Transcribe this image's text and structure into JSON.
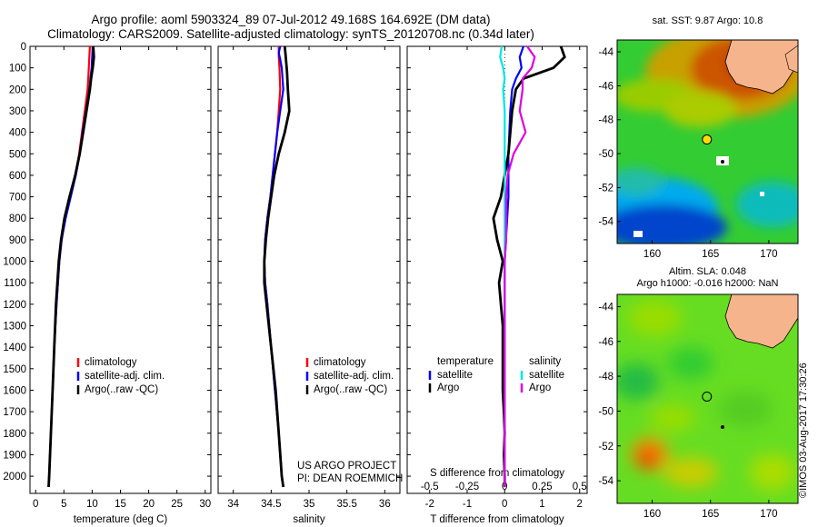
{
  "header": {
    "title_line1": "Argo profile: aoml 5903324_89 07-Jul-2012 49.168S 164.692E (DM data)",
    "title_line2": "Climatology: CARS2009. Satellite-adjusted climatology: synTS_20120708.nc (0.34d later)"
  },
  "colors": {
    "climatology": "#ff0000",
    "satellite": "#0000ff",
    "argo": "#000000",
    "sat_salinity": "#00e5e5",
    "argo_salinity": "#e000e0"
  },
  "chart_data": [
    {
      "type": "line",
      "name": "temperature-profile",
      "xlabel": "temperature (deg C)",
      "ylabel": "",
      "xlim": [
        -1,
        31
      ],
      "ylim": [
        2080,
        0
      ],
      "xticks": [
        0,
        5,
        10,
        15,
        20,
        25,
        30
      ],
      "yticks": [
        0,
        100,
        200,
        300,
        400,
        500,
        600,
        700,
        800,
        900,
        1000,
        1100,
        1200,
        1300,
        1400,
        1500,
        1600,
        1700,
        1800,
        1900,
        2000
      ],
      "legend": [
        "climatology",
        "satellite-adj. clim.",
        "Argo(..raw -QC)"
      ],
      "legend_position": "lower-right",
      "series": [
        {
          "name": "climatology",
          "depth": [
            0,
            50,
            100,
            150,
            200,
            300,
            400,
            500,
            600,
            700,
            800,
            900,
            1000,
            1200,
            1400,
            1600,
            1800,
            2000,
            2050
          ],
          "values": [
            9.6,
            9.5,
            9.4,
            9.3,
            9.2,
            8.7,
            8.2,
            7.7,
            7.0,
            6.1,
            5.2,
            4.6,
            4.2,
            3.7,
            3.3,
            3.0,
            2.7,
            2.4,
            2.3
          ]
        },
        {
          "name": "satellite-adj. clim.",
          "depth": [
            0,
            50,
            100,
            150,
            200,
            300,
            400,
            500,
            600,
            700,
            800,
            900,
            1000,
            1200,
            1400,
            1600,
            1800,
            2000,
            2050
          ],
          "values": [
            10.1,
            10.0,
            9.9,
            9.7,
            9.5,
            8.9,
            8.3,
            7.8,
            7.1,
            6.2,
            5.3,
            4.6,
            4.2,
            3.7,
            3.3,
            3.0,
            2.7,
            2.4,
            2.3
          ]
        },
        {
          "name": "Argo(..raw -QC)",
          "depth": [
            0,
            50,
            100,
            150,
            200,
            300,
            400,
            500,
            600,
            700,
            800,
            900,
            1000,
            1200,
            1400,
            1600,
            1800,
            2000,
            2050
          ],
          "values": [
            10.2,
            10.3,
            10.1,
            9.8,
            9.6,
            9.0,
            8.4,
            7.8,
            7.0,
            6.0,
            5.1,
            4.5,
            4.1,
            3.6,
            3.3,
            3.0,
            2.7,
            2.4,
            2.3
          ]
        }
      ]
    },
    {
      "type": "line",
      "name": "salinity-profile",
      "xlabel": "salinity",
      "ylabel": "",
      "xlim": [
        33.8,
        36.2
      ],
      "ylim": [
        2080,
        0
      ],
      "xticks": [
        34,
        34.5,
        35,
        35.5,
        36
      ],
      "legend": [
        "climatology",
        "satellite-adj. clim.",
        "Argo(..raw -QC)"
      ],
      "legend_position": "lower-right",
      "annotations": [
        "US ARGO PROJECT",
        "PI: DEAN ROEMMICH"
      ],
      "series": [
        {
          "name": "climatology",
          "depth": [
            0,
            50,
            100,
            200,
            300,
            400,
            500,
            600,
            700,
            800,
            900,
            1000,
            1100,
            1200,
            1400,
            1600,
            1800,
            2000,
            2050
          ],
          "values": [
            34.6,
            34.6,
            34.61,
            34.62,
            34.6,
            34.58,
            34.55,
            34.52,
            34.49,
            34.45,
            34.42,
            34.41,
            34.42,
            34.45,
            34.5,
            34.55,
            34.6,
            34.64,
            34.66
          ]
        },
        {
          "name": "satellite-adj. clim.",
          "depth": [
            0,
            30,
            60,
            100,
            200,
            300,
            400,
            500,
            600,
            700,
            800,
            900,
            1000,
            1100,
            1200,
            1400,
            1600,
            1800,
            2000,
            2050
          ],
          "values": [
            34.62,
            34.6,
            34.62,
            34.64,
            34.66,
            34.62,
            34.58,
            34.55,
            34.52,
            34.49,
            34.45,
            34.42,
            34.41,
            34.42,
            34.45,
            34.5,
            34.55,
            34.6,
            34.64,
            34.66
          ]
        },
        {
          "name": "Argo(..raw -QC)",
          "depth": [
            0,
            40,
            80,
            120,
            200,
            300,
            400,
            500,
            600,
            700,
            800,
            900,
            1000,
            1100,
            1200,
            1400,
            1600,
            1800,
            2000,
            2050
          ],
          "values": [
            34.68,
            34.69,
            34.7,
            34.71,
            34.72,
            34.74,
            34.68,
            34.6,
            34.54,
            34.5,
            34.46,
            34.43,
            34.41,
            34.41,
            34.44,
            34.5,
            34.56,
            34.6,
            34.64,
            34.66
          ]
        }
      ]
    },
    {
      "type": "line",
      "name": "difference-profile",
      "xlabel": "T difference from climatology",
      "xlabel_top": "S difference from climatology",
      "ylabel": "",
      "xlim": [
        -2.6,
        2.2
      ],
      "ylim": [
        2080,
        0
      ],
      "xticks": [
        -2,
        -1,
        0,
        1,
        2
      ],
      "xticks_top": [
        -0.5,
        -0.25,
        0,
        0.25,
        0.5
      ],
      "legend_temperature_title": "temperature",
      "legend_salinity_title": "salinity",
      "legend_temperature": [
        "satellite",
        "Argo"
      ],
      "legend_salinity": [
        "satellite",
        "Argo"
      ],
      "legend_position": "lower-center",
      "series": [
        {
          "name": "temperature satellite",
          "depth": [
            0,
            50,
            100,
            150,
            200,
            300,
            500,
            700,
            1000,
            1500,
            2000,
            2050
          ],
          "values": [
            0.5,
            0.4,
            0.45,
            0.3,
            0.2,
            0.15,
            0.1,
            0.1,
            0.0,
            0.0,
            0.0,
            0.0
          ]
        },
        {
          "name": "temperature Argo",
          "depth": [
            0,
            50,
            100,
            150,
            200,
            300,
            500,
            600,
            700,
            800,
            900,
            1000,
            1100,
            1200,
            1300,
            1400,
            1500,
            1600,
            1700,
            1800,
            1900,
            2000,
            2050
          ],
          "values": [
            1.5,
            1.6,
            1.3,
            0.5,
            0.3,
            0.2,
            0.1,
            0.0,
            -0.1,
            -0.3,
            -0.2,
            -0.05,
            -0.15,
            -0.1,
            -0.05,
            -0.05,
            -0.05,
            -0.05,
            -0.02,
            0.0,
            -0.02,
            0.0,
            0.0
          ]
        },
        {
          "name": "salinity satellite",
          "depth": [
            0,
            50,
            100,
            150,
            200,
            300,
            500,
            700,
            900,
            1000,
            1200,
            1500,
            1800,
            2000,
            2050
          ],
          "values": [
            -0.02,
            -0.03,
            -0.01,
            0.0,
            -0.01,
            0.0,
            0.0,
            0.0,
            0.0,
            0.0,
            0.0,
            0.0,
            0.0,
            0.0,
            0.0
          ]
        },
        {
          "name": "salinity Argo",
          "depth": [
            0,
            50,
            100,
            150,
            200,
            300,
            400,
            500,
            600,
            700,
            800,
            900,
            1000,
            1100,
            1200,
            1500,
            1800,
            2000,
            2050
          ],
          "values": [
            0.15,
            0.2,
            0.18,
            0.12,
            0.12,
            0.1,
            0.14,
            0.06,
            0.02,
            0.01,
            0.01,
            0.01,
            0.0,
            0.0,
            0.0,
            0.0,
            0.0,
            0.0,
            0.0
          ]
        }
      ]
    },
    {
      "type": "heatmap",
      "name": "sst-map",
      "title": "sat. SST: 9.87 Argo: 10.8",
      "xticks": [
        160,
        165,
        170
      ],
      "yticks": [
        -44,
        -46,
        -48,
        -50,
        -52,
        -54
      ],
      "xlim": [
        157,
        172.5
      ],
      "ylim": [
        -55.3,
        -43.3
      ],
      "marker": {
        "lon": 164.692,
        "lat": -49.168
      }
    },
    {
      "type": "heatmap",
      "name": "sla-map",
      "title_line1": "Altim. SLA: 0.048",
      "title_line2": "Argo h1000: -0.016 h2000: NaN",
      "xticks": [
        160,
        165,
        170
      ],
      "yticks": [
        -44,
        -46,
        -48,
        -50,
        -52,
        -54
      ],
      "xlim": [
        157,
        172.5
      ],
      "ylim": [
        -55.3,
        -43.3
      ],
      "marker": {
        "lon": 164.692,
        "lat": -49.168
      }
    }
  ],
  "stamp": "©IMOS 03-Aug-2017 17:30:26"
}
